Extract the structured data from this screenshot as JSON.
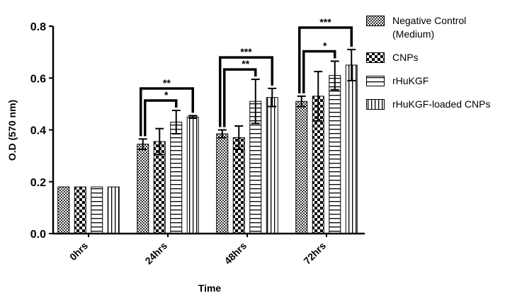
{
  "chart_data": {
    "type": "bar",
    "y_label": "O.D (570 nm)",
    "x_label": "Time",
    "categories": [
      "0hrs",
      "24hrs",
      "48hrs",
      "72hrs"
    ],
    "series": [
      {
        "name": "Negative Control (Medium)",
        "pattern": "dense-check",
        "values": [
          0.18,
          0.345,
          0.385,
          0.51
        ],
        "errors": [
          0,
          0.02,
          0.015,
          0.02
        ]
      },
      {
        "name": "CNPs",
        "pattern": "checker",
        "values": [
          0.18,
          0.355,
          0.37,
          0.53
        ],
        "errors": [
          0,
          0.05,
          0.045,
          0.095
        ]
      },
      {
        "name": "rHuKGF",
        "pattern": "h-stripes",
        "values": [
          0.18,
          0.43,
          0.51,
          0.61
        ],
        "errors": [
          0,
          0.045,
          0.085,
          0.055
        ]
      },
      {
        "name": "rHuKGF-loaded CNPs",
        "pattern": "v-stripes",
        "values": [
          0.18,
          0.45,
          0.525,
          0.65
        ],
        "errors": [
          0,
          0.005,
          0.035,
          0.06
        ]
      }
    ],
    "annotations": [
      {
        "text": "*",
        "category": "24hrs",
        "from": "Negative Control (Medium)",
        "to": "rHuKGF"
      },
      {
        "text": "**",
        "category": "24hrs",
        "from": "Negative Control (Medium)",
        "to": "rHuKGF-loaded CNPs"
      },
      {
        "text": "**",
        "category": "48hrs",
        "from": "Negative Control (Medium)",
        "to": "rHuKGF"
      },
      {
        "text": "***",
        "category": "48hrs",
        "from": "Negative Control (Medium)",
        "to": "rHuKGF-loaded CNPs"
      },
      {
        "text": "*",
        "category": "72hrs",
        "from": "Negative Control (Medium)",
        "to": "rHuKGF"
      },
      {
        "text": "***",
        "category": "72hrs",
        "from": "Negative Control (Medium)",
        "to": "rHuKGF-loaded CNPs"
      }
    ],
    "ylim": [
      0,
      0.8
    ],
    "yticks": [
      {
        "value": 0,
        "label": "0.0"
      },
      0.2,
      0.4,
      0.6,
      0.8
    ],
    "grid": false
  }
}
